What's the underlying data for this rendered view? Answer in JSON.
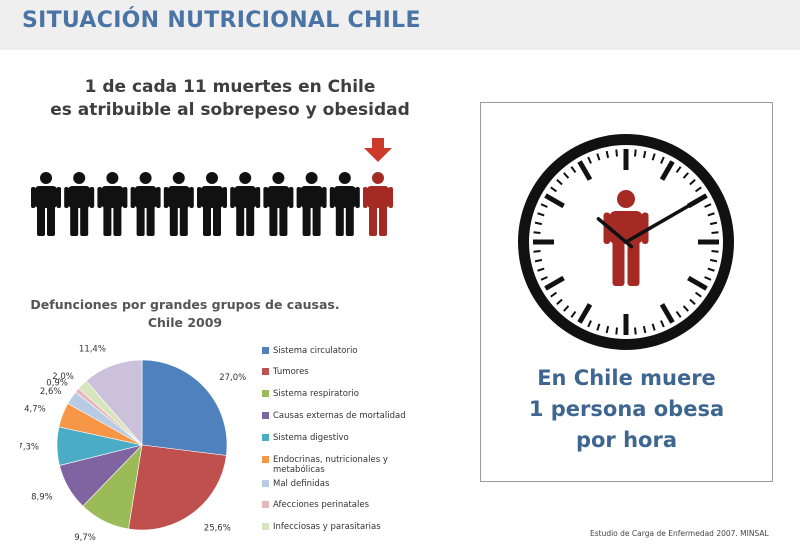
{
  "header": {
    "title": "SITUACIÓN NUTRICIONAL CHILE"
  },
  "headline": {
    "line1": "1 de cada 11 muertes en Chile",
    "line2": "es atribuible al sobrepeso y obesidad"
  },
  "people": {
    "total": 11,
    "highlighted_index": 10,
    "color_default": "#111111",
    "color_highlight": "#a52a24",
    "arrow_color": "#cc3b2a"
  },
  "chart_data": {
    "type": "pie",
    "title": "Defunciones por grandes grupos de causas. Chile 2009",
    "title_line1": "Defunciones por grandes grupos de causas.",
    "title_line2": "Chile 2009",
    "slices": [
      {
        "label": "Sistema circulatorio",
        "value": 27.0,
        "display": "27,0%",
        "color": "#4f81bd"
      },
      {
        "label": "Tumores",
        "value": 25.6,
        "display": "25,6%",
        "color": "#c0504d"
      },
      {
        "label": "Sistema respiratorio",
        "value": 9.7,
        "display": "9,7%",
        "color": "#9bbb59"
      },
      {
        "label": "Causas externas de mortalidad",
        "value": 8.9,
        "display": "8,9%",
        "color": "#8064a2"
      },
      {
        "label": "Sistema digestivo",
        "value": 7.3,
        "display": "7,3%",
        "color": "#4bacc6"
      },
      {
        "label": "Endocrinas, nutricionales y metabólicas",
        "value": 4.7,
        "display": "4,7%",
        "color": "#f79646"
      },
      {
        "label": "Mal definidas",
        "value": 2.6,
        "display": "2,6%",
        "color": "#b7cbe4"
      },
      {
        "label": "Afecciones perinatales",
        "value": 0.9,
        "display": "0,9%",
        "color": "#e6b9b8"
      },
      {
        "label": "Infecciosas y parasitarias",
        "value": 2.0,
        "display": "2,0%",
        "color": "#d7e4bd"
      },
      {
        "label": "",
        "value": 11.4,
        "display": "11,4%",
        "color": "#ccc1da"
      }
    ],
    "legend_placement": "right"
  },
  "legend": {
    "items": [
      {
        "line1": "Sistema circulatorio",
        "line2": ""
      },
      {
        "line1": "Tumores",
        "line2": ""
      },
      {
        "line1": "Sistema respiratorio",
        "line2": ""
      },
      {
        "line1": "Causas externas de mortalidad",
        "line2": ""
      },
      {
        "line1": "Sistema digestivo",
        "line2": ""
      },
      {
        "line1": "Endocrinas, nutricionales y",
        "line2": "metabólicas"
      },
      {
        "line1": "Mal definidas",
        "line2": ""
      },
      {
        "line1": "Afecciones perinatales",
        "line2": ""
      },
      {
        "line1": "Infecciosas y parasitarias",
        "line2": ""
      }
    ]
  },
  "clock": {
    "caption_line1": "En Chile muere",
    "caption_line2": "1 persona obesa",
    "caption_line3": "por hora",
    "figure_color": "#a52a24"
  },
  "source": "Estudio de Carga de Enfermedad 2007. MINSAL"
}
